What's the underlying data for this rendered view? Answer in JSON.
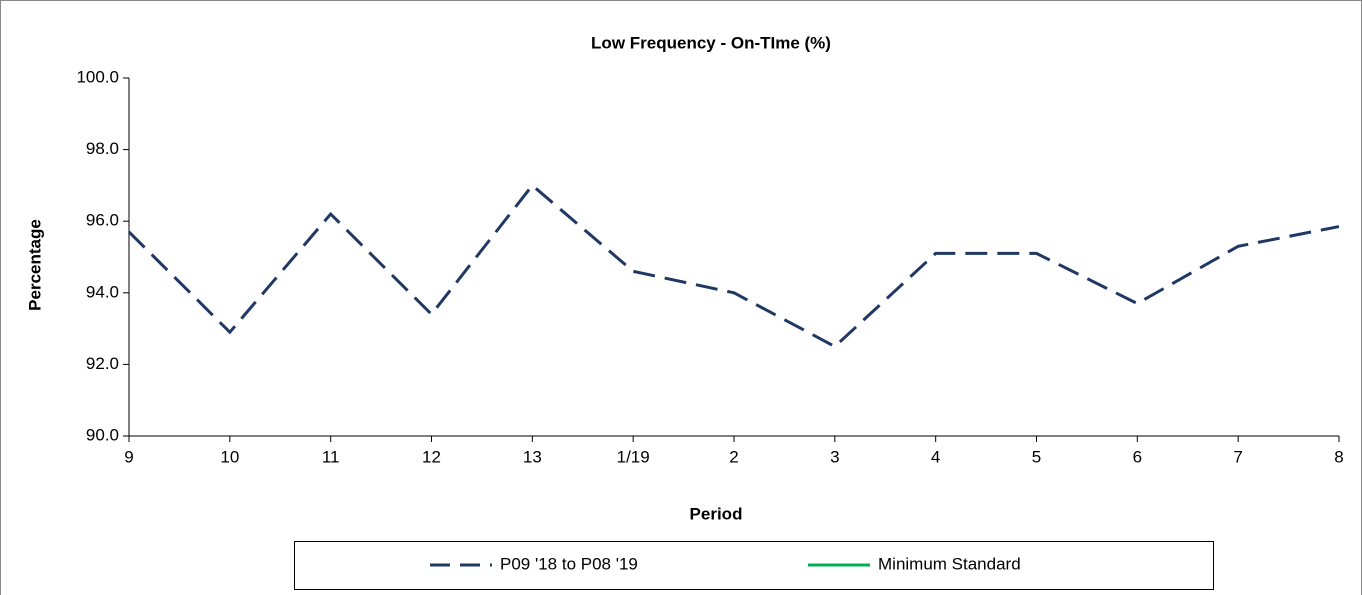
{
  "chart_data": {
    "type": "line",
    "title": "Low Frequency - On-TIme (%)",
    "x_label": "Period",
    "y_label": "Percentage",
    "categories": [
      "9",
      "10",
      "11",
      "12",
      "13",
      "1/19",
      "2",
      "3",
      "4",
      "5",
      "6",
      "7",
      "8"
    ],
    "series": [
      {
        "name": "P09 '18 to P08 '19",
        "color": "#1f3864",
        "dashed": true,
        "values": [
          95.7,
          92.9,
          96.2,
          93.4,
          97.0,
          94.6,
          94.0,
          92.5,
          95.1,
          95.1,
          93.7,
          95.3,
          95.85
        ]
      },
      {
        "name": "Minimum Standard",
        "color": "#00b050",
        "dashed": false,
        "values": [
          null,
          null,
          null,
          null,
          null,
          null,
          null,
          null,
          null,
          null,
          null,
          null,
          null
        ]
      }
    ],
    "ylim": [
      90,
      100
    ],
    "yticks": [
      {
        "value": 90,
        "label": "90.0"
      },
      {
        "value": 92,
        "label": "92.0"
      },
      {
        "value": 94,
        "label": "94.0"
      },
      {
        "value": 96,
        "label": "96.0"
      },
      {
        "value": 98,
        "label": "98.0"
      },
      {
        "value": 100,
        "label": "100.0"
      }
    ],
    "grid": false
  }
}
